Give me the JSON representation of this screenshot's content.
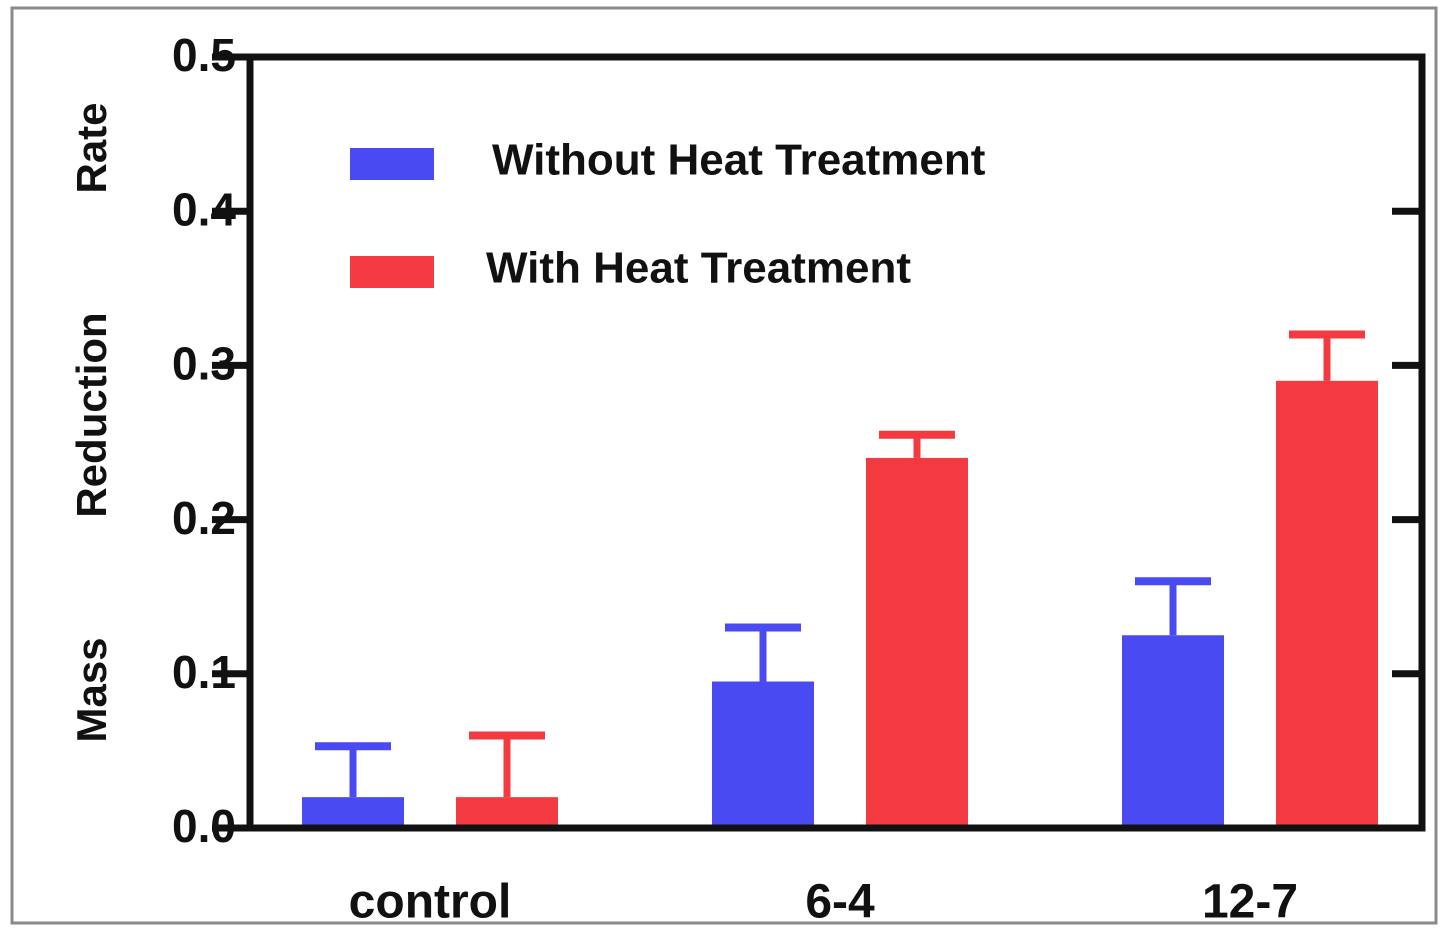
{
  "chart_data": {
    "type": "bar",
    "categories": [
      "control",
      "6-4",
      "12-7"
    ],
    "series": [
      {
        "name": "Without Heat Treatment",
        "color": "#4a4af2",
        "values": [
          0.02,
          0.095,
          0.125
        ],
        "errors": [
          0.033,
          0.035,
          0.035
        ]
      },
      {
        "name": "With Heat Treatment",
        "color": "#f23a40",
        "values": [
          0.02,
          0.24,
          0.29
        ],
        "errors": [
          0.04,
          0.015,
          0.03
        ]
      }
    ],
    "title": "",
    "xlabel": "",
    "ylabel": "Mass Reduction Rate",
    "ylabel_words": [
      "Mass",
      "Reduction",
      "Rate"
    ],
    "ylim": [
      0,
      0.5
    ],
    "yticks": [
      "0.0",
      "0.1",
      "0.2",
      "0.3",
      "0.4",
      "0.5"
    ],
    "legend_position": "top-left",
    "grid": false
  }
}
